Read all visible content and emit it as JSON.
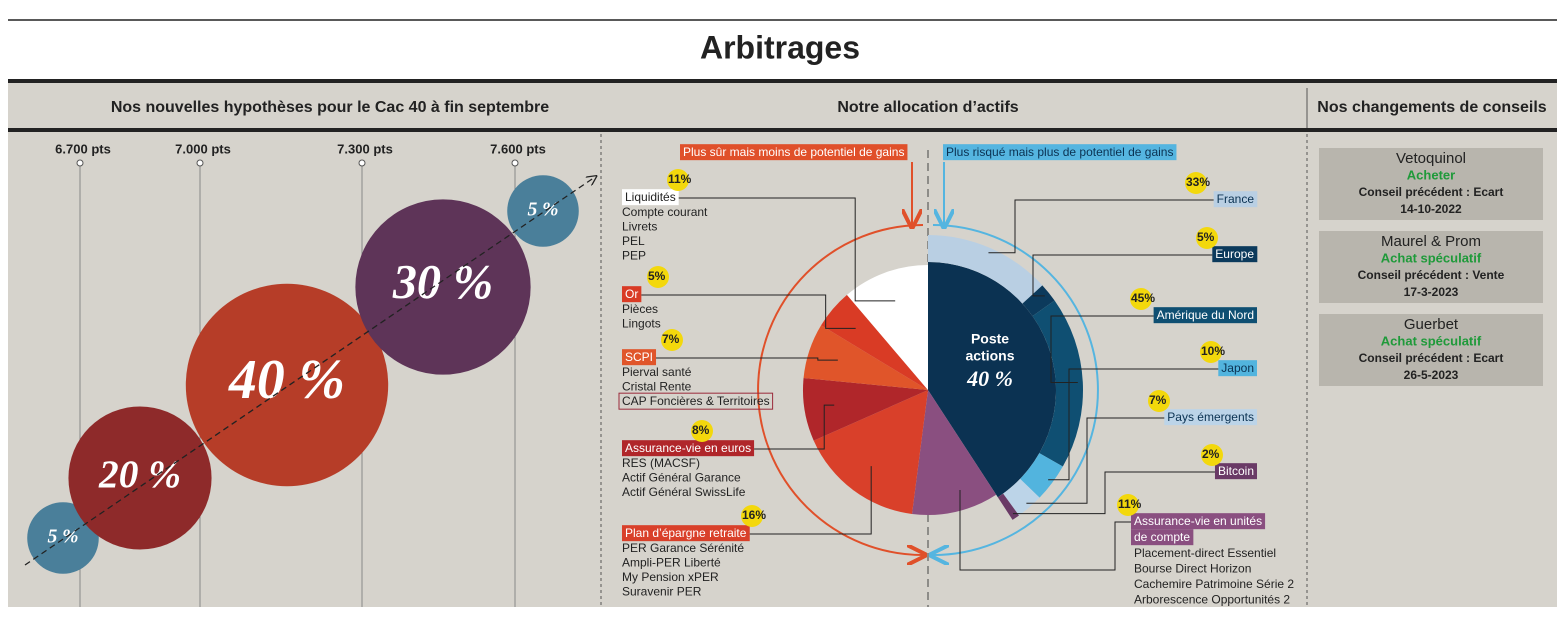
{
  "title": "Arbitrages",
  "cac": {
    "heading": "Nos nouvelles hypothèses pour le Cac 40 à fin septembre",
    "levels": [
      "6.700 pts",
      "7.000 pts",
      "7.300 pts",
      "7.600 pts"
    ],
    "scenarios": [
      {
        "value": 5,
        "label": "5 %"
      },
      {
        "value": 20,
        "label": "20 %"
      },
      {
        "value": 40,
        "label": "40 %"
      },
      {
        "value": 30,
        "label": "30 %"
      },
      {
        "value": 5,
        "label": "5 %"
      }
    ]
  },
  "allocation": {
    "heading": "Notre allocation d’actifs",
    "safe_label": "Plus sûr mais moins de potentiel de gains",
    "risky_label": "Plus risqué mais plus de potentiel de gains",
    "safe": [
      {
        "name": "Liquidités",
        "value": 11,
        "label": "11%",
        "color": "#ffffff",
        "text_color": "#222222",
        "items": [
          "Compte courant",
          "Livrets",
          "PEL",
          "PEP"
        ]
      },
      {
        "name": "Or",
        "value": 5,
        "label": "5%",
        "color": "#d93b25",
        "text_color": "#ffffff",
        "items": [
          "Pièces",
          "Lingots"
        ]
      },
      {
        "name": "SCPI",
        "value": 7,
        "label": "7%",
        "color": "#e0552a",
        "text_color": "#ffffff",
        "items": [
          "Pierval santé",
          "Cristal Rente",
          "CAP Foncières & Territoires"
        ]
      },
      {
        "name": "Assurance-vie en euros",
        "value": 8,
        "label": "8%",
        "color": "#b0262a",
        "text_color": "#ffffff",
        "items": [
          "RES (MACSF)",
          "Actif Général Garance",
          "Actif Général SwissLife"
        ]
      },
      {
        "name": "Plan d’épargne retraite",
        "value": 16,
        "label": "16%",
        "color": "#d9402a",
        "text_color": "#ffffff",
        "items": [
          "PER Garance Sérénité",
          "Ampli-PER Liberté",
          "My Pension xPER",
          "Suravenir PER"
        ]
      }
    ],
    "stocks": {
      "lines": [
        "Poste",
        "actions"
      ],
      "value": 40,
      "label": "40 %",
      "color": "#0b3252"
    },
    "regions": [
      {
        "name": "France",
        "value": 33,
        "label": "33%",
        "color": "#b9cfe3",
        "text_color": "#0b3252"
      },
      {
        "name": "Europe",
        "value": 5,
        "label": "5%",
        "color": "#0c3a5c",
        "text_color": "#ffffff"
      },
      {
        "name": "Amérique du Nord",
        "value": 45,
        "label": "45%",
        "color": "#0f4f72",
        "text_color": "#ffffff"
      },
      {
        "name": "Japon",
        "value": 10,
        "label": "10%",
        "color": "#52b4de",
        "text_color": "#0b3252"
      },
      {
        "name": "Pays émergents",
        "value": 7,
        "label": "7%",
        "color": "#bcd4e8",
        "text_color": "#0b3252"
      },
      {
        "name": "Bitcoin",
        "value": 2,
        "label": "2%",
        "color": "#6a3a66",
        "text_color": "#ffffff"
      }
    ],
    "uc": {
      "lines": [
        "Assurance-vie en unités",
        "de compte"
      ],
      "value": 11,
      "label": "11%",
      "color": "#8a4f80",
      "text_color": "#ffffff",
      "items": [
        "Placement-direct Essentiel",
        "Bourse Direct Horizon",
        "Cachemire Patrimoine Série 2",
        "Arborescence Opportunités 2"
      ]
    }
  },
  "advice": {
    "heading": "Nos changements de conseils",
    "cards": [
      {
        "name": "Vetoquinol",
        "advice": "Acheter",
        "previous": "Conseil précédent : Ecart",
        "date": "14-10-2022"
      },
      {
        "name": "Maurel & Prom",
        "advice": "Achat spéculatif",
        "previous": "Conseil précédent : Vente",
        "date": "17-3-2023"
      },
      {
        "name": "Guerbet",
        "advice": "Achat spéculatif",
        "previous": "Conseil précédent : Ecart",
        "date": "26-5-2023"
      }
    ]
  }
}
